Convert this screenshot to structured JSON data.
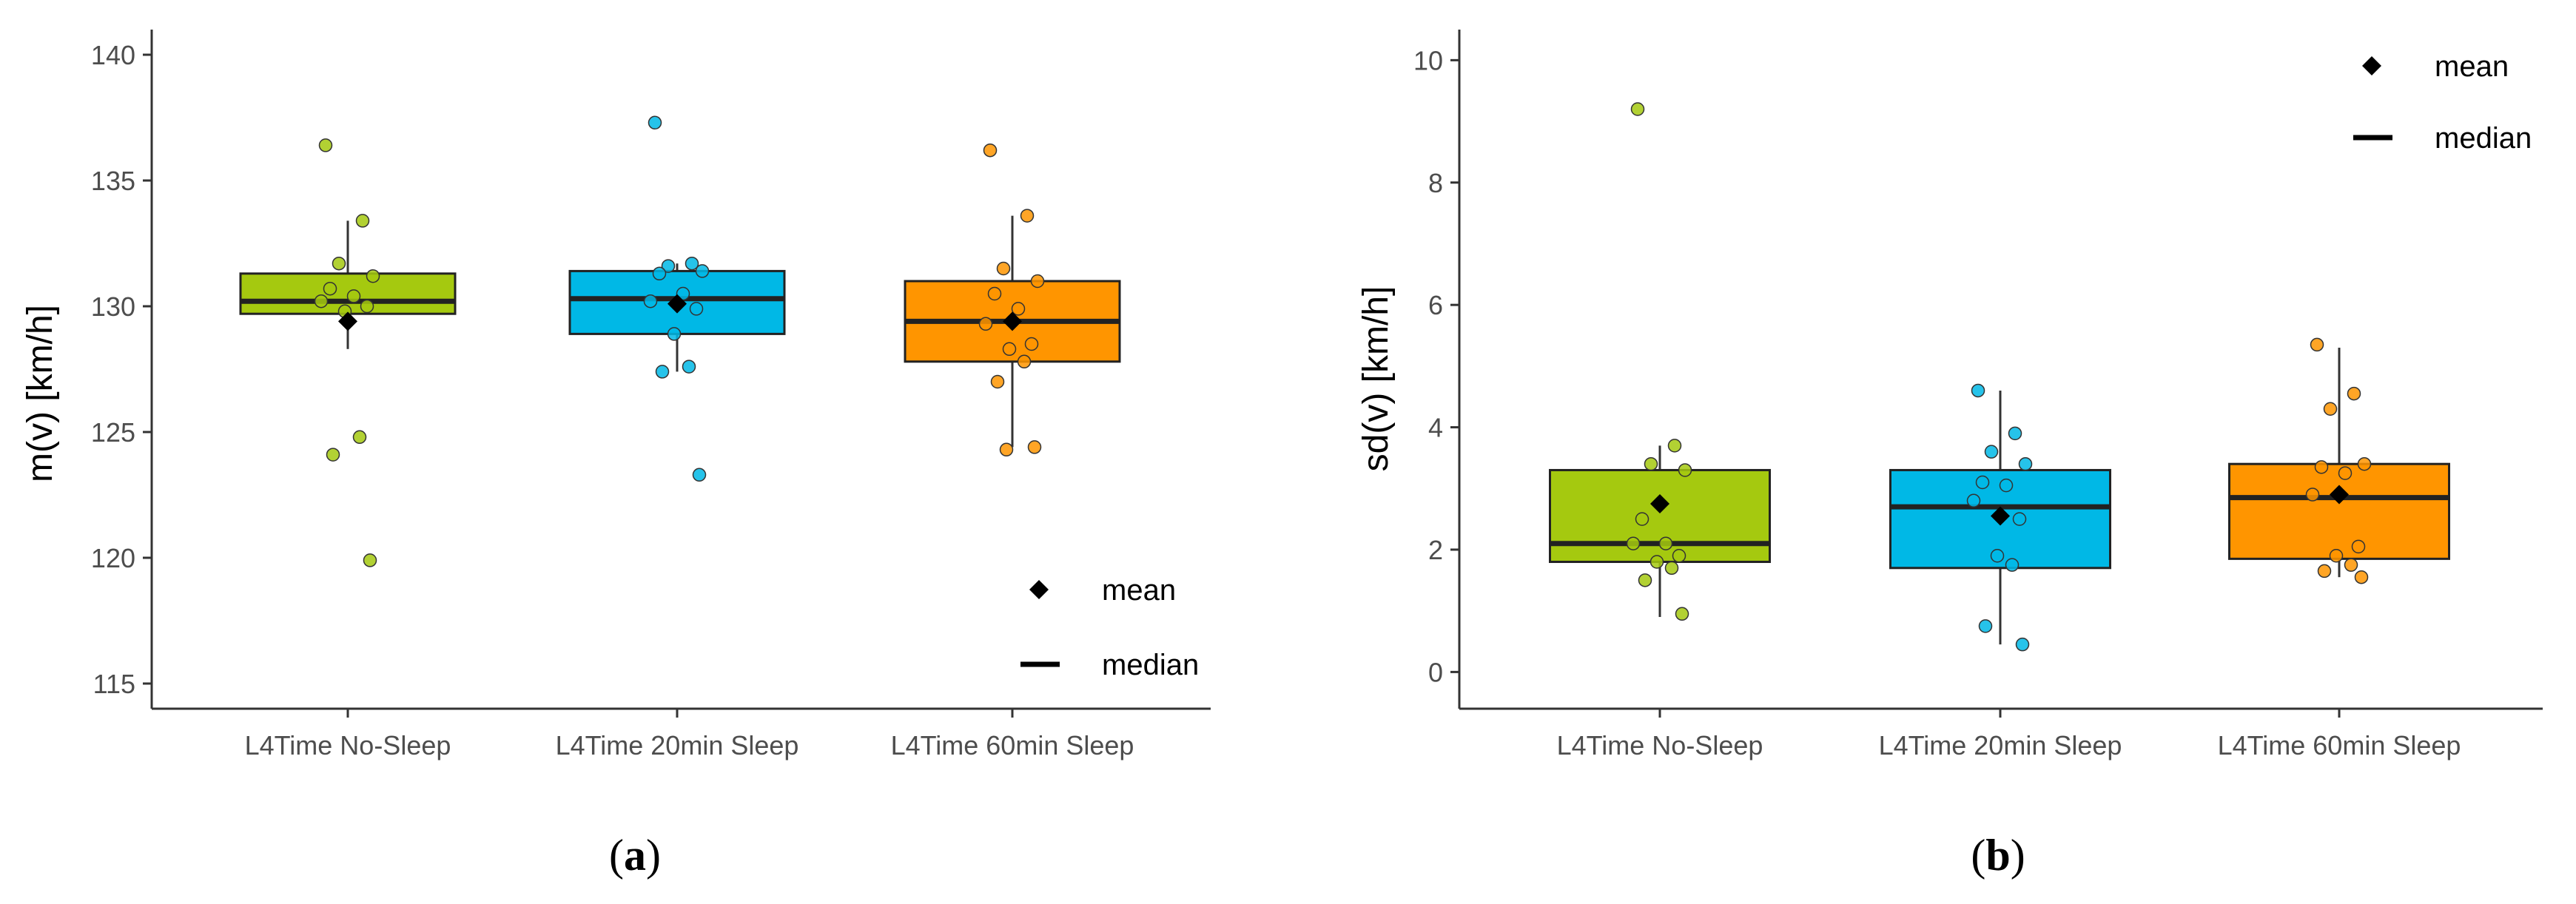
{
  "colors": {
    "no_sleep": "#A5C90F",
    "sleep_20": "#00B8E6",
    "sleep_60": "#FF9500",
    "axis": "#333333",
    "marker": "#000000"
  },
  "legend": {
    "mean_label": "mean",
    "median_label": "median"
  },
  "chart_data": [
    {
      "type": "box",
      "panel_label": "(a)",
      "panel_label_parts": {
        "open": "(",
        "letter": "a",
        "close": ")"
      },
      "ylabel": "m(v) [km/h]",
      "xlabel": "",
      "ylim": [
        114,
        141
      ],
      "yticks": [
        115,
        120,
        125,
        130,
        135,
        140
      ],
      "legend_position": "bottom-right",
      "categories": [
        "L4Time No-Sleep",
        "L4Time 20min Sleep",
        "L4Time 60min Sleep"
      ],
      "boxes": [
        {
          "name": "L4Time No-Sleep",
          "whisker_low": 128.3,
          "q1": 129.7,
          "median": 130.2,
          "q3": 131.3,
          "whisker_high": 133.4,
          "mean": 129.4,
          "points": [
            136.4,
            133.4,
            131.7,
            131.2,
            130.7,
            130.4,
            130.2,
            130.0,
            129.8,
            124.8,
            124.1,
            119.9
          ]
        },
        {
          "name": "L4Time 20min Sleep",
          "whisker_low": 127.4,
          "q1": 128.9,
          "median": 130.3,
          "q3": 131.4,
          "whisker_high": 131.7,
          "mean": 130.1,
          "points": [
            137.3,
            131.7,
            131.6,
            131.4,
            131.3,
            130.5,
            130.2,
            129.9,
            128.9,
            127.6,
            127.4,
            123.3
          ]
        },
        {
          "name": "L4Time 60min Sleep",
          "whisker_low": 124.4,
          "q1": 127.8,
          "median": 129.4,
          "q3": 131.0,
          "whisker_high": 133.6,
          "mean": 129.4,
          "points": [
            136.2,
            133.6,
            131.5,
            131.0,
            130.5,
            129.9,
            129.3,
            128.5,
            128.3,
            127.8,
            127.0,
            124.4,
            124.3
          ]
        }
      ]
    },
    {
      "type": "box",
      "panel_label": "(b)",
      "panel_label_parts": {
        "open": "(",
        "letter": "b",
        "close": ")"
      },
      "ylabel": "sd(v) [km/h]",
      "xlabel": "",
      "ylim": [
        -0.6,
        10.5
      ],
      "yticks": [
        0,
        2,
        4,
        6,
        8,
        10
      ],
      "legend_position": "top-right",
      "categories": [
        "L4Time No-Sleep",
        "L4Time 20min Sleep",
        "L4Time 60min Sleep"
      ],
      "boxes": [
        {
          "name": "L4Time No-Sleep",
          "whisker_low": 0.9,
          "q1": 1.8,
          "median": 2.1,
          "q3": 3.3,
          "whisker_high": 3.7,
          "mean": 2.75,
          "points": [
            9.2,
            3.7,
            3.4,
            3.3,
            2.5,
            2.1,
            2.1,
            1.9,
            1.8,
            1.7,
            1.5,
            0.95
          ]
        },
        {
          "name": "L4Time 20min Sleep",
          "whisker_low": 0.45,
          "q1": 1.7,
          "median": 2.7,
          "q3": 3.3,
          "whisker_high": 4.6,
          "mean": 2.55,
          "points": [
            4.6,
            3.9,
            3.6,
            3.4,
            3.1,
            3.05,
            2.8,
            2.5,
            1.9,
            1.75,
            0.75,
            0.45
          ]
        },
        {
          "name": "L4Time 60min Sleep",
          "whisker_low": 1.55,
          "q1": 1.85,
          "median": 2.85,
          "q3": 3.4,
          "whisker_high": 5.3,
          "mean": 2.9,
          "points": [
            5.35,
            4.55,
            4.3,
            3.4,
            3.35,
            3.25,
            2.9,
            2.05,
            1.9,
            1.75,
            1.65,
            1.55
          ]
        }
      ]
    }
  ]
}
